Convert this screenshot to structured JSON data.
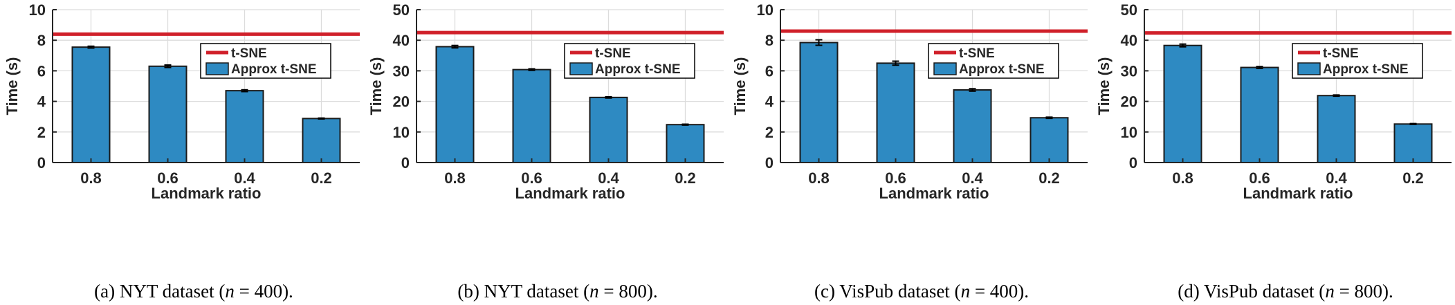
{
  "colors": {
    "bar_fill": "#2e8ac2",
    "bar_stroke": "#1a1a1a",
    "tsne_line": "#d0202a",
    "axis": "#262626",
    "grid": "#dcdcdc"
  },
  "chart_data": [
    {
      "type": "bar",
      "categories": [
        "0.8",
        "0.6",
        "0.4",
        "0.2"
      ],
      "series": [
        {
          "name": "Approx t-SNE",
          "values": [
            7.55,
            6.3,
            4.7,
            2.88
          ],
          "errors": [
            0.06,
            0.08,
            0.06,
            0.03
          ]
        }
      ],
      "reference_lines": [
        {
          "name": "t-SNE",
          "value": 8.4
        }
      ],
      "xlabel": "Landmark ratio",
      "ylabel": "Time (s)",
      "ylim": [
        0,
        10
      ],
      "yticks": [
        "0",
        "2",
        "4",
        "6",
        "8",
        "10"
      ],
      "grid": true,
      "legend": "right",
      "caption": {
        "prefix": "(a) NYT dataset (",
        "var": "n",
        "eq": " = 400)."
      }
    },
    {
      "type": "bar",
      "categories": [
        "0.8",
        "0.6",
        "0.4",
        "0.2"
      ],
      "series": [
        {
          "name": "Approx t-SNE",
          "values": [
            37.9,
            30.4,
            21.3,
            12.4
          ],
          "errors": [
            0.4,
            0.25,
            0.2,
            0.15
          ]
        }
      ],
      "reference_lines": [
        {
          "name": "t-SNE",
          "value": 42.5
        }
      ],
      "xlabel": "Landmark ratio",
      "ylabel": "Time (s)",
      "ylim": [
        0,
        50
      ],
      "yticks": [
        "0",
        "10",
        "20",
        "30",
        "40",
        "50"
      ],
      "grid": true,
      "legend": "right",
      "caption": {
        "prefix": "(b) NYT dataset (",
        "var": "n",
        "eq": " = 800)."
      }
    },
    {
      "type": "bar",
      "categories": [
        "0.8",
        "0.6",
        "0.4",
        "0.2"
      ],
      "series": [
        {
          "name": "Approx t-SNE",
          "values": [
            7.85,
            6.5,
            4.75,
            2.93
          ],
          "errors": [
            0.18,
            0.13,
            0.08,
            0.04
          ]
        }
      ],
      "reference_lines": [
        {
          "name": "t-SNE",
          "value": 8.6
        }
      ],
      "xlabel": "Landmark ratio",
      "ylabel": "Time (s)",
      "ylim": [
        0,
        10
      ],
      "yticks": [
        "0",
        "2",
        "4",
        "6",
        "8",
        "10"
      ],
      "grid": true,
      "legend": "right",
      "caption": {
        "prefix": "(c) VisPub dataset (",
        "var": "n",
        "eq": " = 400)."
      }
    },
    {
      "type": "bar",
      "categories": [
        "0.8",
        "0.6",
        "0.4",
        "0.2"
      ],
      "series": [
        {
          "name": "Approx t-SNE",
          "values": [
            38.3,
            31.1,
            21.9,
            12.6
          ],
          "errors": [
            0.45,
            0.3,
            0.2,
            0.15
          ]
        }
      ],
      "reference_lines": [
        {
          "name": "t-SNE",
          "value": 42.4
        }
      ],
      "xlabel": "Landmark ratio",
      "ylabel": "Time (s)",
      "ylim": [
        0,
        50
      ],
      "yticks": [
        "0",
        "10",
        "20",
        "30",
        "40",
        "50"
      ],
      "grid": true,
      "legend": "right",
      "caption": {
        "prefix": "(d) VisPub dataset (",
        "var": "n",
        "eq": " = 800)."
      }
    }
  ]
}
